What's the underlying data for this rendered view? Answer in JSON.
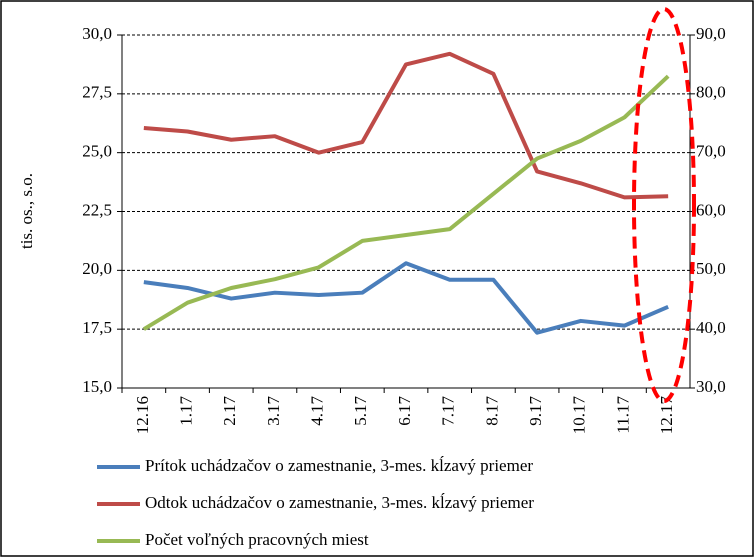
{
  "chart_data": {
    "type": "line",
    "y_label": "tis. os., s.o.",
    "categories": [
      "12.16",
      "1.17",
      "2.17",
      "3.17",
      "4.17",
      "5.17",
      "6.17",
      "7.17",
      "8.17",
      "9.17",
      "10.17",
      "11.17",
      "12.17"
    ],
    "series": [
      {
        "name": "Prítok uchádzačov o zamestnanie, 3-mes. kĺzavý priemer",
        "color": "#4a7ebb",
        "values": [
          19.5,
          19.25,
          18.8,
          19.05,
          18.95,
          19.05,
          20.3,
          19.6,
          19.6,
          17.35,
          17.85,
          17.65,
          18.45
        ]
      },
      {
        "name": "Odtok uchádzačov o zamestnanie, 3-mes. kĺzavý priemer",
        "color": "#be4b48",
        "values": [
          26.05,
          25.9,
          25.55,
          25.7,
          25.0,
          25.45,
          28.75,
          29.2,
          28.35,
          24.2,
          23.7,
          23.1,
          23.15
        ]
      },
      {
        "name": "Počet voľných pracovných miest",
        "color": "#98b954",
        "axis": "y2",
        "values": [
          40.0,
          44.5,
          47,
          48.5,
          50.5,
          55,
          56,
          57,
          63,
          69,
          72,
          76,
          83
        ]
      }
    ],
    "ylim": [
      15,
      30
    ],
    "yticks": [
      {
        "value": 15,
        "label": "15,0"
      },
      {
        "value": 17.5,
        "label": "17,5"
      },
      {
        "value": 20,
        "label": "20,0"
      },
      {
        "value": 22.5,
        "label": "22,5"
      },
      {
        "value": 25,
        "label": "25,0"
      },
      {
        "value": 27.5,
        "label": "27,5"
      },
      {
        "value": 30,
        "label": "30,0"
      }
    ],
    "y2lim": [
      30,
      90
    ],
    "y2ticks": [
      {
        "value": 30,
        "label": "30,0"
      },
      {
        "value": 40,
        "label": "40,0"
      },
      {
        "value": 50,
        "label": "50,0"
      },
      {
        "value": 60,
        "label": "60,0"
      },
      {
        "value": 70,
        "label": "70,0"
      },
      {
        "value": 80,
        "label": "80,0"
      },
      {
        "value": 90,
        "label": "90,0"
      }
    ],
    "grid": true
  }
}
